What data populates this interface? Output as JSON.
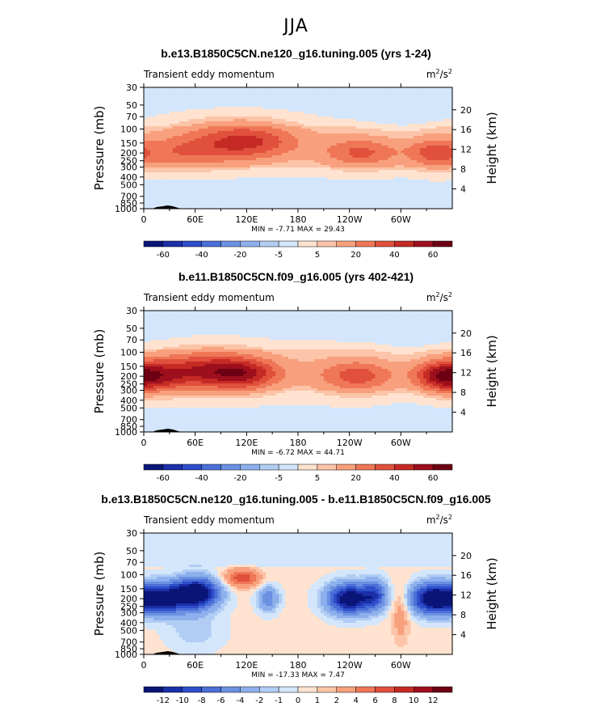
{
  "figure_title": "JJA",
  "colors": {
    "red": [
      "#ffe3d0",
      "#fcc4a8",
      "#f8a07d",
      "#ef7757",
      "#e0503d",
      "#c52a25",
      "#9d0f1d",
      "#6d0012"
    ],
    "blue": [
      "#d3e6fb",
      "#b1cdf4",
      "#8db0ec",
      "#6c90e2",
      "#4b6fd7",
      "#2e4ecb",
      "#1b2fa8",
      "#0a1578"
    ]
  },
  "chart_data": [
    {
      "type": "heatmap",
      "title": "b.e13.B1850C5CN.ne120_g16.tuning.005 (yrs 1-24)",
      "field_label": "Transient eddy momentum",
      "units": "m²/s²",
      "units_base": "m",
      "units_sup1": "2",
      "units_mid": "/s",
      "units_sup2": "2",
      "ylabel": "Pressure (mb)",
      "y2label": "Height (km)",
      "x_ticks": [
        "0",
        "60E",
        "120E",
        "180",
        "120W",
        "60W"
      ],
      "y_ticks": [
        "30",
        "50",
        "70",
        "100",
        "150",
        "200",
        "250",
        "300",
        "400",
        "500",
        "700",
        "850",
        "1000"
      ],
      "y2_ticks": [
        "4",
        "8",
        "12",
        "16",
        "20"
      ],
      "stats": "MIN =   -7.71  MAX =   29.43",
      "min": -7.71,
      "max": 29.43,
      "colorbar_labels": [
        "-60",
        "-40",
        "-20",
        "-5",
        "5",
        "20",
        "40",
        "60"
      ],
      "features": [
        {
          "lon": 45,
          "p": 200,
          "dlon": 60,
          "dz": 3.2,
          "v": 24
        },
        {
          "lon": 125,
          "p": 150,
          "dlon": 55,
          "dz": 3.6,
          "v": 29
        },
        {
          "lon": 90,
          "p": 120,
          "dlon": 75,
          "dz": 3.5,
          "v": 14
        },
        {
          "lon": 255,
          "p": 200,
          "dlon": 45,
          "dz": 3.0,
          "v": 28
        },
        {
          "lon": 338,
          "p": 200,
          "dlon": 30,
          "dz": 3.0,
          "v": 28
        },
        {
          "lon": 210,
          "p": 160,
          "dlon": 90,
          "dz": 4.5,
          "v": 5
        },
        {
          "lon": 60,
          "p": 700,
          "dlon": 40,
          "dz": 2.5,
          "v": -3
        }
      ]
    },
    {
      "type": "heatmap",
      "title": "b.e11.B1850C5CN.f09_g16.005 (yrs 402-421)",
      "field_label": "Transient eddy momentum",
      "units": "m²/s²",
      "units_base": "m",
      "units_sup1": "2",
      "units_mid": "/s",
      "units_sup2": "2",
      "ylabel": "Pressure (mb)",
      "y2label": "Height (km)",
      "x_ticks": [
        "0",
        "60E",
        "120E",
        "180",
        "120W",
        "60W"
      ],
      "y_ticks": [
        "30",
        "50",
        "70",
        "100",
        "150",
        "200",
        "250",
        "300",
        "400",
        "500",
        "700",
        "850",
        "1000"
      ],
      "y2_ticks": [
        "4",
        "8",
        "12",
        "16",
        "20"
      ],
      "stats": "MIN =   -6.72  MAX =   44.71",
      "min": -6.72,
      "max": 44.71,
      "colorbar_labels": [
        "-60",
        "-40",
        "-20",
        "-5",
        "5",
        "20",
        "40",
        "60"
      ],
      "features": [
        {
          "lon": 10,
          "p": 200,
          "dlon": 40,
          "dz": 3.2,
          "v": 35
        },
        {
          "lon": 75,
          "p": 170,
          "dlon": 60,
          "dz": 3.8,
          "v": 44
        },
        {
          "lon": 120,
          "p": 190,
          "dlon": 40,
          "dz": 3.0,
          "v": 30
        },
        {
          "lon": 250,
          "p": 200,
          "dlon": 45,
          "dz": 3.2,
          "v": 30
        },
        {
          "lon": 345,
          "p": 200,
          "dlon": 30,
          "dz": 3.0,
          "v": 34
        },
        {
          "lon": 200,
          "p": 170,
          "dlon": 110,
          "dz": 5.0,
          "v": 6
        }
      ]
    },
    {
      "type": "heatmap",
      "title": "b.e13.B1850C5CN.ne120_g16.tuning.005 - b.e11.B1850C5CN.f09_g16.005",
      "field_label": "Transient eddy momentum",
      "units": "m²/s²",
      "units_base": "m",
      "units_sup1": "2",
      "units_mid": "/s",
      "units_sup2": "2",
      "ylabel": "Pressure (mb)",
      "y2label": "Height (km)",
      "x_ticks": [
        "0",
        "60E",
        "120E",
        "180",
        "120W",
        "60W"
      ],
      "y_ticks": [
        "30",
        "50",
        "70",
        "100",
        "150",
        "200",
        "250",
        "300",
        "400",
        "500",
        "700",
        "850",
        "1000"
      ],
      "y2_ticks": [
        "4",
        "8",
        "12",
        "16",
        "20"
      ],
      "stats": "MIN =  -17.33  MAX =    7.47",
      "min": -17.33,
      "max": 7.47,
      "colorbar_labels": [
        "-12",
        "-10",
        "-8",
        "-6",
        "-4",
        "-2",
        "-1",
        "0",
        "1",
        "2",
        "4",
        "6",
        "8",
        "10",
        "12"
      ],
      "features": [
        {
          "lon": 22,
          "p": 200,
          "dlon": 28,
          "dz": 3.0,
          "v": -14
        },
        {
          "lon": 62,
          "p": 170,
          "dlon": 25,
          "dz": 3.0,
          "v": -16
        },
        {
          "lon": 115,
          "p": 110,
          "dlon": 20,
          "dz": 1.8,
          "v": 7
        },
        {
          "lon": 145,
          "p": 200,
          "dlon": 12,
          "dz": 2.5,
          "v": -6
        },
        {
          "lon": 240,
          "p": 200,
          "dlon": 25,
          "dz": 3.0,
          "v": -15
        },
        {
          "lon": 270,
          "p": 180,
          "dlon": 14,
          "dz": 3.0,
          "v": -8
        },
        {
          "lon": 300,
          "p": 300,
          "dlon": 10,
          "dz": 6.0,
          "v": 3
        },
        {
          "lon": 338,
          "p": 200,
          "dlon": 25,
          "dz": 3.0,
          "v": -16
        },
        {
          "lon": 60,
          "p": 500,
          "dlon": 30,
          "dz": 4.0,
          "v": -2
        }
      ]
    }
  ]
}
